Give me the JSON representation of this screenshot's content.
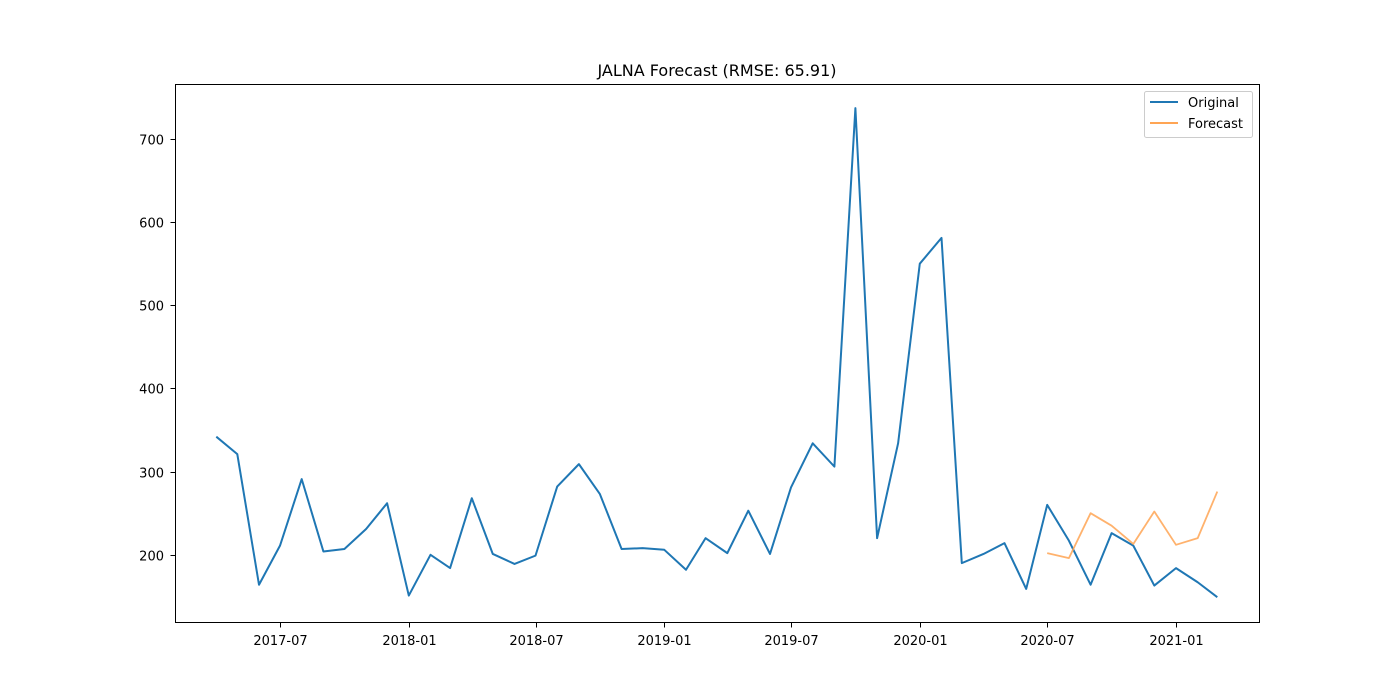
{
  "chart_data": {
    "type": "line",
    "title": "JALNA Forecast (RMSE: 65.91)",
    "xlabel": "",
    "ylabel": "",
    "x_type": "date",
    "xlim": [
      "2017-02-01",
      "2021-05-01"
    ],
    "ylim": [
      118,
      766
    ],
    "x_ticks": [
      {
        "date": "2017-07-01",
        "label": "2017-07"
      },
      {
        "date": "2018-01-01",
        "label": "2018-01"
      },
      {
        "date": "2018-07-01",
        "label": "2018-07"
      },
      {
        "date": "2019-01-01",
        "label": "2019-01"
      },
      {
        "date": "2019-07-01",
        "label": "2019-07"
      },
      {
        "date": "2020-01-01",
        "label": "2020-01"
      },
      {
        "date": "2020-07-01",
        "label": "2020-07"
      },
      {
        "date": "2021-01-01",
        "label": "2021-01"
      }
    ],
    "y_ticks": [
      200,
      300,
      400,
      500,
      600,
      700
    ],
    "grid": false,
    "legend_position": "top-right",
    "series": [
      {
        "name": "Original",
        "color": "#1f77b4",
        "points": [
          [
            "2017-04-01",
            342
          ],
          [
            "2017-05-01",
            321
          ],
          [
            "2017-06-01",
            164
          ],
          [
            "2017-07-01",
            211
          ],
          [
            "2017-08-01",
            291
          ],
          [
            "2017-09-01",
            204
          ],
          [
            "2017-10-01",
            207
          ],
          [
            "2017-11-01",
            231
          ],
          [
            "2017-12-01",
            262
          ],
          [
            "2018-01-01",
            151
          ],
          [
            "2018-02-01",
            200
          ],
          [
            "2018-03-01",
            184
          ],
          [
            "2018-04-01",
            268
          ],
          [
            "2018-05-01",
            201
          ],
          [
            "2018-06-01",
            189
          ],
          [
            "2018-07-01",
            199
          ],
          [
            "2018-08-01",
            282
          ],
          [
            "2018-09-01",
            309
          ],
          [
            "2018-10-01",
            273
          ],
          [
            "2018-11-01",
            207
          ],
          [
            "2018-12-01",
            208
          ],
          [
            "2019-01-01",
            206
          ],
          [
            "2019-02-01",
            182
          ],
          [
            "2019-03-01",
            220
          ],
          [
            "2019-04-01",
            202
          ],
          [
            "2019-05-01",
            253
          ],
          [
            "2019-06-01",
            201
          ],
          [
            "2019-07-01",
            281
          ],
          [
            "2019-08-01",
            334
          ],
          [
            "2019-09-01",
            306
          ],
          [
            "2019-10-01",
            737
          ],
          [
            "2019-11-01",
            220
          ],
          [
            "2019-12-01",
            334
          ],
          [
            "2020-01-01",
            550
          ],
          [
            "2020-02-01",
            581
          ],
          [
            "2020-03-01",
            190
          ],
          [
            "2020-04-01",
            201
          ],
          [
            "2020-05-01",
            214
          ],
          [
            "2020-06-01",
            159
          ],
          [
            "2020-07-01",
            260
          ],
          [
            "2020-08-01",
            217
          ],
          [
            "2020-09-01",
            164
          ],
          [
            "2020-10-01",
            226
          ],
          [
            "2020-11-01",
            211
          ],
          [
            "2020-12-01",
            163
          ],
          [
            "2021-01-01",
            184
          ],
          [
            "2021-02-01",
            167
          ],
          [
            "2021-03-01",
            149
          ]
        ]
      },
      {
        "name": "Forecast",
        "color": "#ffa554",
        "points": [
          [
            "2020-07-01",
            202
          ],
          [
            "2020-08-01",
            196
          ],
          [
            "2020-09-01",
            250
          ],
          [
            "2020-10-01",
            235
          ],
          [
            "2020-11-01",
            213
          ],
          [
            "2020-12-01",
            252
          ],
          [
            "2021-01-01",
            212
          ],
          [
            "2021-02-01",
            220
          ],
          [
            "2021-03-01",
            276
          ]
        ]
      }
    ]
  }
}
